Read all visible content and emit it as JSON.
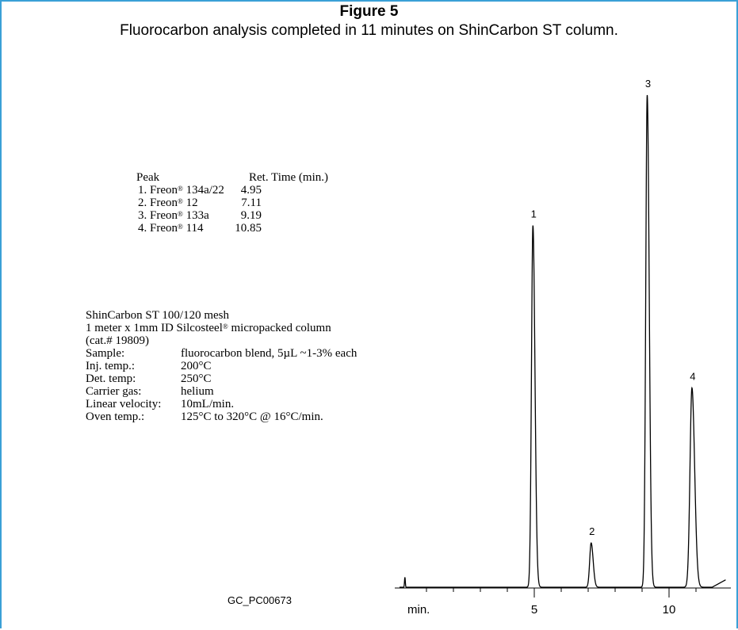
{
  "figure": {
    "title": "Figure 5",
    "caption": "Fluorocarbon analysis completed in 11 minutes on ShinCarbon ST column."
  },
  "peak_table": {
    "header_peak": "Peak",
    "header_rt": "Ret. Time (min.)",
    "rows": [
      {
        "label": "1. Freon",
        "sup": "®",
        "compound": " 134a/22",
        "rt": "4.95"
      },
      {
        "label": "2. Freon",
        "sup": "®",
        "compound": "  12",
        "rt": "7.11"
      },
      {
        "label": "3. Freon",
        "sup": "®",
        "compound": " 133a",
        "rt": "9.19"
      },
      {
        "label": "4. Freon",
        "sup": "®",
        "compound": "  114",
        "rt": "10.85"
      }
    ]
  },
  "conditions": {
    "line1": "ShinCarbon ST 100/120 mesh",
    "line2_a": "1 meter x 1mm ID Silcosteel",
    "line2_sup": "®",
    "line2_b": " micropacked column",
    "line3": "(cat.# 19809)",
    "params": [
      {
        "key": "Sample:",
        "value": "fluorocarbon blend,  5µL ~1-3% each"
      },
      {
        "key": "Inj. temp.:",
        "value": "200°C"
      },
      {
        "key": "Det. temp:",
        "value": "250°C"
      },
      {
        "key": "Carrier gas:",
        "value": "helium"
      },
      {
        "key": "Linear velocity:",
        "value": "10mL/min."
      },
      {
        "key": "Oven temp.:",
        "value": "125°C to 320°C @ 16°C/min."
      }
    ]
  },
  "gc_id": "GC_PC00673",
  "chart_data": {
    "type": "line",
    "x_unit_label": "min.",
    "xlim": [
      0,
      12.1
    ],
    "x_ticks_major": [
      5,
      10
    ],
    "x_ticks_minor": [
      1,
      2,
      3,
      4,
      6,
      7,
      8,
      9,
      11
    ],
    "x_tick_labels": [
      "5",
      "10"
    ],
    "peaks": [
      {
        "label": "1",
        "rt": 4.95,
        "height": 0.735,
        "width": 0.06
      },
      {
        "label": "2",
        "rt": 7.11,
        "height": 0.09,
        "width": 0.06
      },
      {
        "label": "3",
        "rt": 9.19,
        "height": 1.0,
        "width": 0.06
      },
      {
        "label": "4",
        "rt": 10.85,
        "height": 0.405,
        "width": 0.08
      }
    ],
    "injection_spike": {
      "x": 0.2,
      "height": 0.02
    },
    "color": "#000000"
  }
}
